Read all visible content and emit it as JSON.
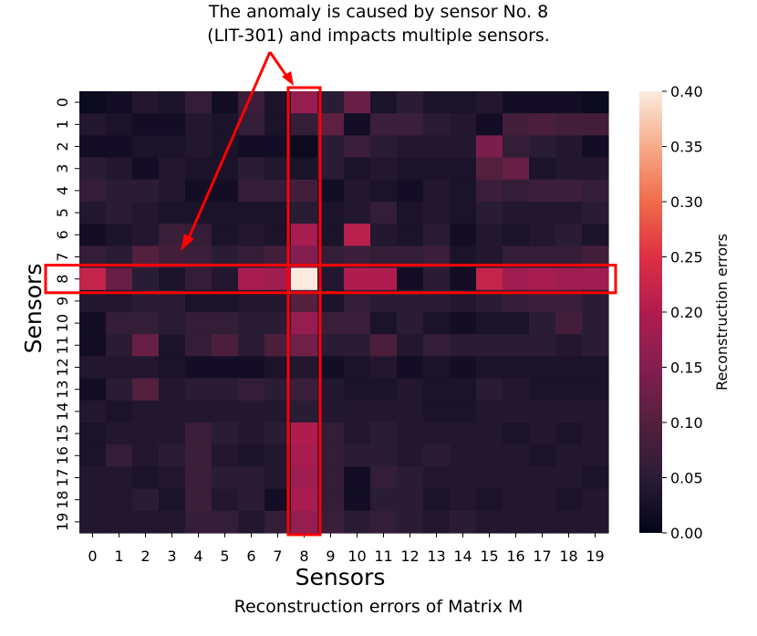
{
  "annotation": {
    "line1": "The anomaly is caused by sensor No. 8",
    "line2": "(LIT-301) and impacts multiple sensors."
  },
  "figure_caption": "Reconstruction errors of Matrix M",
  "colors": {
    "highlight_box": "#ff0000",
    "arrow": "#ff0000",
    "colormap": "rocket"
  },
  "chart_data": {
    "type": "heatmap",
    "title": "",
    "xlabel": "Sensors",
    "ylabel": "Sensors",
    "x_categories": [
      "0",
      "1",
      "2",
      "3",
      "4",
      "5",
      "6",
      "7",
      "8",
      "9",
      "10",
      "11",
      "12",
      "13",
      "14",
      "15",
      "16",
      "17",
      "18",
      "19"
    ],
    "y_categories": [
      "0",
      "1",
      "2",
      "3",
      "4",
      "5",
      "6",
      "7",
      "8",
      "9",
      "10",
      "11",
      "12",
      "13",
      "14",
      "15",
      "16",
      "17",
      "18",
      "19"
    ],
    "colorbar": {
      "label": "Reconstruction errors",
      "range": [
        0.0,
        0.4
      ],
      "ticks": [
        "0.00",
        "0.05",
        "0.10",
        "0.15",
        "0.20",
        "0.25",
        "0.30",
        "0.35",
        "0.40"
      ]
    },
    "highlighted_row": 8,
    "highlighted_column": 8,
    "values": [
      [
        0.01,
        0.02,
        0.04,
        0.03,
        0.06,
        0.02,
        0.07,
        0.03,
        0.17,
        0.05,
        0.12,
        0.03,
        0.05,
        0.03,
        0.03,
        0.04,
        0.02,
        0.02,
        0.02,
        0.01
      ],
      [
        0.04,
        0.03,
        0.02,
        0.02,
        0.04,
        0.03,
        0.06,
        0.03,
        0.06,
        0.11,
        0.02,
        0.07,
        0.07,
        0.05,
        0.04,
        0.02,
        0.08,
        0.09,
        0.08,
        0.08
      ],
      [
        0.02,
        0.02,
        0.03,
        0.03,
        0.04,
        0.03,
        0.02,
        0.02,
        0.01,
        0.05,
        0.07,
        0.05,
        0.04,
        0.04,
        0.04,
        0.14,
        0.06,
        0.05,
        0.04,
        0.02
      ],
      [
        0.05,
        0.04,
        0.02,
        0.04,
        0.03,
        0.03,
        0.05,
        0.04,
        0.03,
        0.05,
        0.03,
        0.04,
        0.03,
        0.03,
        0.03,
        0.1,
        0.12,
        0.03,
        0.04,
        0.04
      ],
      [
        0.06,
        0.05,
        0.05,
        0.04,
        0.02,
        0.02,
        0.06,
        0.06,
        0.08,
        0.02,
        0.04,
        0.03,
        0.02,
        0.04,
        0.03,
        0.07,
        0.06,
        0.07,
        0.07,
        0.06
      ],
      [
        0.04,
        0.05,
        0.04,
        0.03,
        0.03,
        0.03,
        0.03,
        0.03,
        0.05,
        0.03,
        0.04,
        0.06,
        0.03,
        0.04,
        0.03,
        0.05,
        0.04,
        0.04,
        0.04,
        0.05
      ],
      [
        0.02,
        0.03,
        0.04,
        0.07,
        0.06,
        0.03,
        0.04,
        0.03,
        0.19,
        0.03,
        0.21,
        0.04,
        0.03,
        0.05,
        0.02,
        0.04,
        0.03,
        0.04,
        0.05,
        0.03
      ],
      [
        0.06,
        0.05,
        0.1,
        0.08,
        0.07,
        0.05,
        0.06,
        0.08,
        0.15,
        0.06,
        0.07,
        0.06,
        0.06,
        0.07,
        0.03,
        0.04,
        0.06,
        0.06,
        0.06,
        0.08
      ],
      [
        0.22,
        0.12,
        0.05,
        0.03,
        0.06,
        0.04,
        0.19,
        0.18,
        0.4,
        0.04,
        0.2,
        0.2,
        0.02,
        0.05,
        0.02,
        0.22,
        0.18,
        0.19,
        0.18,
        0.18
      ],
      [
        0.04,
        0.04,
        0.05,
        0.05,
        0.03,
        0.03,
        0.04,
        0.04,
        0.1,
        0.03,
        0.06,
        0.05,
        0.05,
        0.05,
        0.04,
        0.05,
        0.06,
        0.07,
        0.07,
        0.05
      ],
      [
        0.02,
        0.06,
        0.06,
        0.05,
        0.06,
        0.06,
        0.05,
        0.05,
        0.17,
        0.07,
        0.07,
        0.03,
        0.05,
        0.03,
        0.02,
        0.03,
        0.03,
        0.05,
        0.08,
        0.05
      ],
      [
        0.02,
        0.05,
        0.12,
        0.03,
        0.06,
        0.09,
        0.05,
        0.09,
        0.13,
        0.05,
        0.05,
        0.09,
        0.04,
        0.06,
        0.05,
        0.05,
        0.05,
        0.05,
        0.04,
        0.05
      ],
      [
        0.04,
        0.04,
        0.04,
        0.03,
        0.02,
        0.02,
        0.02,
        0.03,
        0.04,
        0.02,
        0.03,
        0.04,
        0.02,
        0.03,
        0.02,
        0.03,
        0.03,
        0.03,
        0.03,
        0.03
      ],
      [
        0.02,
        0.05,
        0.1,
        0.04,
        0.05,
        0.05,
        0.06,
        0.05,
        0.07,
        0.04,
        0.03,
        0.03,
        0.04,
        0.03,
        0.03,
        0.05,
        0.04,
        0.03,
        0.03,
        0.03
      ],
      [
        0.04,
        0.03,
        0.04,
        0.04,
        0.04,
        0.04,
        0.04,
        0.04,
        0.05,
        0.04,
        0.04,
        0.04,
        0.04,
        0.03,
        0.03,
        0.04,
        0.04,
        0.04,
        0.04,
        0.04
      ],
      [
        0.03,
        0.04,
        0.04,
        0.04,
        0.07,
        0.05,
        0.04,
        0.05,
        0.2,
        0.06,
        0.04,
        0.05,
        0.04,
        0.04,
        0.04,
        0.04,
        0.03,
        0.04,
        0.03,
        0.04
      ],
      [
        0.03,
        0.06,
        0.04,
        0.05,
        0.07,
        0.04,
        0.03,
        0.04,
        0.19,
        0.06,
        0.05,
        0.05,
        0.04,
        0.05,
        0.04,
        0.04,
        0.04,
        0.03,
        0.04,
        0.04
      ],
      [
        0.04,
        0.04,
        0.03,
        0.04,
        0.07,
        0.05,
        0.05,
        0.04,
        0.18,
        0.06,
        0.02,
        0.06,
        0.05,
        0.04,
        0.04,
        0.04,
        0.04,
        0.04,
        0.04,
        0.03
      ],
      [
        0.04,
        0.04,
        0.05,
        0.03,
        0.07,
        0.04,
        0.05,
        0.02,
        0.19,
        0.06,
        0.02,
        0.05,
        0.05,
        0.03,
        0.04,
        0.03,
        0.04,
        0.04,
        0.03,
        0.04
      ],
      [
        0.04,
        0.04,
        0.04,
        0.04,
        0.06,
        0.06,
        0.04,
        0.06,
        0.17,
        0.07,
        0.05,
        0.06,
        0.05,
        0.04,
        0.05,
        0.04,
        0.04,
        0.04,
        0.04,
        0.04
      ]
    ]
  }
}
